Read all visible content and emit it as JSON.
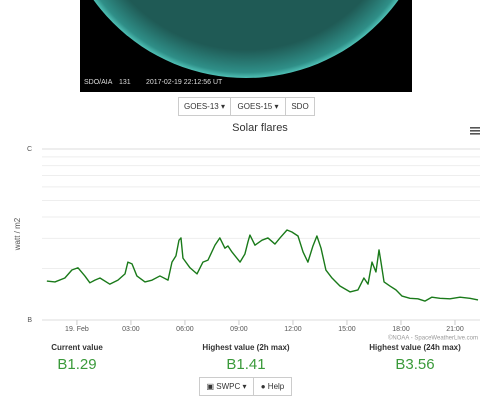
{
  "image": {
    "instrument": "SDO/AIA",
    "channel": "131",
    "timestamp": "2017-02-19 22:12:56 UT"
  },
  "source_buttons": [
    "GOES-13",
    "GOES-15",
    "SDO"
  ],
  "chart_data": {
    "type": "line",
    "title": "Solar flares",
    "y_label": "watt / m2",
    "y_scale": "log",
    "ylim": [
      1e-07,
      1e-06
    ],
    "yticks": [
      {
        "value": 1e-06,
        "label": "C"
      },
      {
        "value": 1e-07,
        "label": "B"
      }
    ],
    "minor_yticks": [
      2e-07,
      3e-07,
      4e-07,
      5e-07,
      6e-07,
      7e-07,
      8e-07,
      9e-07
    ],
    "grid": true,
    "xlim": [
      -1.94,
      22.39
    ],
    "xticks": [
      {
        "value": 0,
        "label": "19. Feb"
      },
      {
        "value": 3,
        "label": "03:00"
      },
      {
        "value": 6,
        "label": "06:00"
      },
      {
        "value": 9,
        "label": "09:00"
      },
      {
        "value": 12,
        "label": "12:00"
      },
      {
        "value": 15,
        "label": "15:00"
      },
      {
        "value": 18,
        "label": "18:00"
      },
      {
        "value": 21,
        "label": "21:00"
      }
    ],
    "series": [
      {
        "color": "#1a7a1a",
        "x": [
          -1.67,
          -1.22,
          -0.67,
          -0.28,
          0.06,
          0.44,
          0.72,
          1.0,
          1.28,
          1.83,
          2.28,
          2.67,
          2.83,
          3.06,
          3.33,
          3.78,
          4.17,
          4.61,
          5.06,
          5.28,
          5.5,
          5.67,
          5.78,
          5.89,
          6.28,
          6.67,
          7.0,
          7.28,
          7.67,
          7.94,
          8.22,
          8.39,
          8.61,
          9.06,
          9.33,
          9.5,
          9.61,
          9.89,
          10.28,
          10.61,
          11.0,
          11.28,
          11.67,
          11.94,
          12.28,
          12.56,
          12.83,
          13.11,
          13.33,
          13.56,
          13.83,
          14.17,
          14.61,
          15.17,
          15.61,
          15.94,
          16.17,
          16.39,
          16.61,
          16.78,
          16.89,
          17.06,
          17.39,
          17.72,
          18.06,
          18.5,
          18.94,
          19.33,
          19.72,
          20.17,
          20.72,
          21.28,
          21.83,
          22.28
        ],
        "values": [
          1.69e-07,
          1.67e-07,
          1.76e-07,
          1.96e-07,
          2.02e-07,
          1.81e-07,
          1.65e-07,
          1.71e-07,
          1.76e-07,
          1.62e-07,
          1.71e-07,
          1.86e-07,
          2.18e-07,
          2.13e-07,
          1.81e-07,
          1.67e-07,
          1.71e-07,
          1.81e-07,
          1.71e-07,
          2.18e-07,
          2.37e-07,
          2.93e-07,
          3.02e-07,
          2.3e-07,
          2.02e-07,
          1.86e-07,
          2.18e-07,
          2.24e-07,
          2.74e-07,
          3.02e-07,
          2.63e-07,
          2.71e-07,
          2.5e-07,
          2.18e-07,
          2.43e-07,
          2.86e-07,
          3.14e-07,
          2.74e-07,
          2.93e-07,
          3.02e-07,
          2.78e-07,
          3.02e-07,
          3.36e-07,
          3.27e-07,
          3.1e-07,
          2.5e-07,
          2.18e-07,
          2.71e-07,
          3.1e-07,
          2.63e-07,
          1.96e-07,
          1.76e-07,
          1.58e-07,
          1.46e-07,
          1.5e-07,
          1.76e-07,
          1.62e-07,
          2.18e-07,
          1.91e-07,
          2.57e-07,
          2.18e-07,
          1.67e-07,
          1.58e-07,
          1.5e-07,
          1.38e-07,
          1.34e-07,
          1.33e-07,
          1.29e-07,
          1.36e-07,
          1.34e-07,
          1.33e-07,
          1.36e-07,
          1.34e-07,
          1.31e-07
        ]
      }
    ],
    "credit": "©NOAA - SpaceWeatherLive.com"
  },
  "stats": [
    {
      "label": "Current value",
      "value": "B1.29"
    },
    {
      "label": "Highest value (2h max)",
      "value": "B1.41"
    },
    {
      "label": "Highest value (24h max)",
      "value": "B3.56"
    }
  ],
  "footer_buttons": [
    "SWPC",
    "Help"
  ]
}
